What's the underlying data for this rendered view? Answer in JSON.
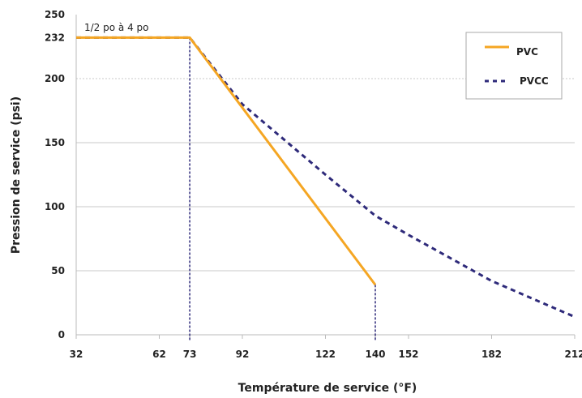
{
  "chart_data": {
    "type": "line",
    "xlabel": "Température de service (°F)",
    "ylabel": "Pression de service (psi)",
    "xlim": [
      32,
      212
    ],
    "ylim": [
      0,
      250
    ],
    "x_ticks": [
      32,
      62,
      73,
      92,
      122,
      140,
      152,
      182,
      212
    ],
    "y_ticks": [
      0,
      50,
      100,
      150,
      200,
      232,
      250
    ],
    "gridlines_y": [
      50,
      100,
      150,
      200
    ],
    "grid_style": {
      "200": "dashed"
    },
    "annotation": "1/2 po à 4 po",
    "legend_position": "top-right",
    "series": [
      {
        "name": "PVC",
        "color": "#F5A623",
        "style": "solid",
        "x": [
          32,
          73,
          140
        ],
        "y": [
          232,
          232,
          39
        ]
      },
      {
        "name": "PVCC",
        "color": "#2E2A7A",
        "style": "dashed",
        "x": [
          32,
          73,
          92,
          122,
          140,
          152,
          182,
          212
        ],
        "y": [
          232,
          232,
          180,
          125,
          93,
          78,
          42,
          14
        ]
      }
    ],
    "drop_lines": [
      {
        "x": 73,
        "y": 232,
        "color": "#2E2A7A"
      },
      {
        "x": 140,
        "y": 39,
        "color": "#2E2A7A"
      }
    ]
  }
}
